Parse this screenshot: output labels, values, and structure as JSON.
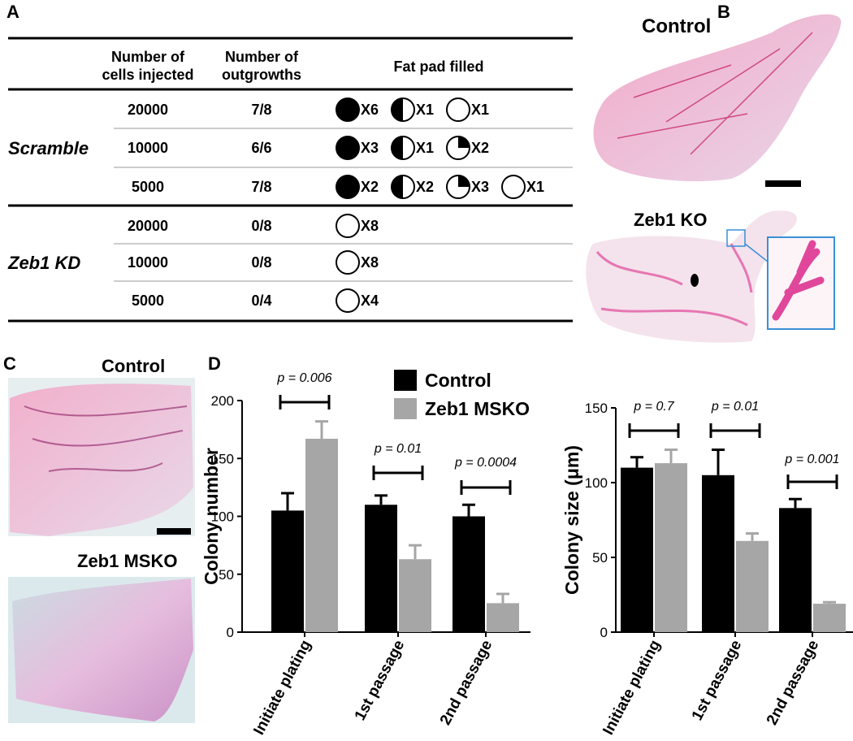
{
  "panel_labels": [
    "A",
    "B",
    "C",
    "D"
  ],
  "panel_a": {
    "headers": [
      [
        "Number of",
        "cells injected"
      ],
      [
        "Number of",
        "outgrowths"
      ],
      [
        "Fat pad filled"
      ]
    ],
    "groups": [
      {
        "label": "Scramble",
        "rows": [
          {
            "cells": 20000,
            "outgrowths": "7/8",
            "fills": [
              {
                "fill": "full",
                "label": "X6"
              },
              {
                "fill": "half",
                "label": "X1"
              },
              {
                "fill": "empty",
                "label": "X1"
              }
            ]
          },
          {
            "cells": 10000,
            "outgrowths": "6/6",
            "fills": [
              {
                "fill": "full",
                "label": "X3"
              },
              {
                "fill": "half",
                "label": "X1"
              },
              {
                "fill": "quarter",
                "label": "X2"
              }
            ]
          },
          {
            "cells": 5000,
            "outgrowths": "7/8",
            "fills": [
              {
                "fill": "full",
                "label": "X2"
              },
              {
                "fill": "half",
                "label": "X2"
              },
              {
                "fill": "quarter",
                "label": "X3"
              },
              {
                "fill": "empty",
                "label": "X1"
              }
            ]
          }
        ]
      },
      {
        "label": "Zeb1 KD",
        "rows": [
          {
            "cells": 20000,
            "outgrowths": "0/8",
            "fills": [
              {
                "fill": "empty",
                "label": "X8"
              }
            ]
          },
          {
            "cells": 10000,
            "outgrowths": "0/8",
            "fills": [
              {
                "fill": "empty",
                "label": "X8"
              }
            ]
          },
          {
            "cells": 5000,
            "outgrowths": "0/4",
            "fills": [
              {
                "fill": "empty",
                "label": "X4"
              }
            ]
          }
        ]
      }
    ]
  },
  "panel_b": {
    "images": [
      "Control",
      "Zeb1 KO"
    ]
  },
  "panel_c": {
    "images": [
      "Control",
      "Zeb1 MSKO"
    ]
  },
  "chart_data": [
    {
      "type": "bar",
      "y_label": "Colony number",
      "categories": [
        "Initiate plating",
        "1st passage",
        "2nd passage"
      ],
      "series": [
        {
          "name": "Control",
          "color": "#000000",
          "values": [
            105,
            110,
            100
          ],
          "errors": [
            15,
            8,
            10
          ]
        },
        {
          "name": "Zeb1 MSKO",
          "color": "#a6a6a6",
          "values": [
            167,
            63,
            25
          ],
          "errors": [
            15,
            12,
            8
          ]
        }
      ],
      "p_values": [
        "p = 0.006",
        "p = 0.01",
        "p = 0.0004"
      ],
      "ylim": [
        0,
        200
      ],
      "yticks": [
        0,
        50,
        100,
        150,
        200
      ],
      "legend": "top-right"
    },
    {
      "type": "bar",
      "y_label": "Colony size (μm)",
      "categories": [
        "Initiate plating",
        "1st passage",
        "2nd passage"
      ],
      "series": [
        {
          "color": "#000000",
          "values": [
            110,
            105,
            83
          ],
          "errors": [
            7,
            17,
            6
          ]
        },
        {
          "color": "#a6a6a6",
          "values": [
            113,
            61,
            19
          ],
          "errors": [
            9,
            5,
            1
          ]
        }
      ],
      "p_values": [
        "p = 0.7",
        "p = 0.01",
        "p = 0.001"
      ],
      "ylim": [
        0,
        150
      ],
      "yticks": [
        0,
        50,
        100,
        150
      ]
    }
  ]
}
